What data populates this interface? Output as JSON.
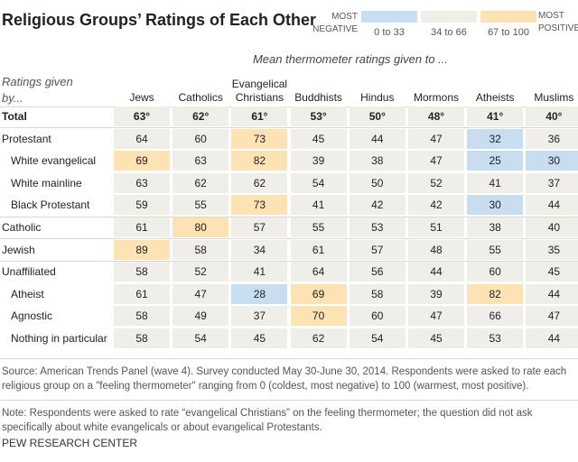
{
  "header": {
    "title": "Religious Groups’ Ratings of Each Other",
    "subtitle": "Mean thermometer ratings given to ...",
    "row_header": "Ratings given by..."
  },
  "legend": {
    "low_label": "MOST NEGATIVE",
    "high_label": "POSITIVE",
    "high_label_top": "MOST",
    "items": [
      {
        "label": "0 to 33",
        "range": [
          0,
          33
        ],
        "color": "#c8ddf0"
      },
      {
        "label": "34 to 66",
        "range": [
          34,
          66
        ],
        "color": "#efeee8"
      },
      {
        "label": "67 to 100",
        "range": [
          67,
          100
        ],
        "color": "#fde2b4"
      }
    ]
  },
  "table": {
    "columns": [
      "Jews",
      "Catholics",
      "Evangelical Christians",
      "Buddhists",
      "Hindus",
      "Mormons",
      "Atheists",
      "Muslims"
    ],
    "total": {
      "label": "Total",
      "values": [
        "63°",
        "62°",
        "61°",
        "53°",
        "50°",
        "48°",
        "41°",
        "40°"
      ]
    },
    "groups": [
      {
        "label": "Protestant",
        "values": [
          64,
          60,
          73,
          45,
          44,
          47,
          32,
          36
        ],
        "subgroups": [
          {
            "label": "White evangelical",
            "values": [
              69,
              63,
              82,
              39,
              38,
              47,
              25,
              30
            ]
          },
          {
            "label": "White mainline",
            "values": [
              63,
              62,
              62,
              54,
              50,
              52,
              41,
              37
            ]
          },
          {
            "label": "Black Protestant",
            "values": [
              59,
              55,
              73,
              41,
              42,
              42,
              30,
              44
            ]
          }
        ]
      },
      {
        "label": "Catholic",
        "values": [
          61,
          80,
          57,
          55,
          53,
          51,
          38,
          40
        ],
        "subgroups": []
      },
      {
        "label": "Jewish",
        "values": [
          89,
          58,
          34,
          61,
          57,
          48,
          55,
          35
        ],
        "subgroups": []
      },
      {
        "label": "Unaffiliated",
        "values": [
          58,
          52,
          41,
          64,
          56,
          44,
          60,
          45
        ],
        "subgroups": [
          {
            "label": "Atheist",
            "values": [
              61,
              47,
              28,
              69,
              58,
              39,
              82,
              44
            ]
          },
          {
            "label": "Agnostic",
            "values": [
              58,
              49,
              37,
              70,
              60,
              47,
              66,
              47
            ]
          },
          {
            "label": "Nothing in particular",
            "values": [
              58,
              54,
              45,
              62,
              54,
              45,
              53,
              44
            ]
          }
        ]
      }
    ]
  },
  "footer": {
    "source": "Source: American Trends Panel (wave 4). Survey conducted May 30-June 30, 2014. Respondents were asked to rate each religious group on a \"feeling thermometer\" ranging from 0 (coldest, most negative) to 100 (warmest, most positive).",
    "note": "Note: Respondents were asked to rate “evangelical Christians” on the feeling thermometer; the question did not ask specifically about white evangelicals or about evangelical Protestants.",
    "credit": "PEW RESEARCH CENTER"
  }
}
